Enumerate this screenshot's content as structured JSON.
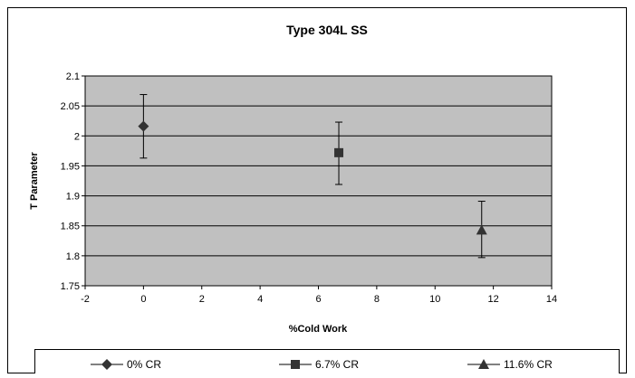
{
  "chart_data": {
    "type": "scatter",
    "title": "Type 304L SS",
    "xlabel": "%Cold Work",
    "ylabel": "T Parameter",
    "xlim": [
      -2,
      14
    ],
    "ylim": [
      1.75,
      2.1
    ],
    "x_ticks": [
      -2,
      0,
      2,
      4,
      6,
      8,
      10,
      12,
      14
    ],
    "y_ticks": [
      1.75,
      1.8,
      1.85,
      1.9,
      1.95,
      2,
      2.05,
      2.1
    ],
    "grid": "horizontal",
    "legend_position": "bottom",
    "plot_background": "#c0c0c0",
    "series": [
      {
        "name": "0% CR",
        "marker": "diamond",
        "x": 0,
        "y": 2.016,
        "error_low": 1.963,
        "error_high": 2.069
      },
      {
        "name": "6.7% CR",
        "marker": "square",
        "x": 6.7,
        "y": 1.972,
        "error_low": 1.919,
        "error_high": 2.023
      },
      {
        "name": "11.6% CR",
        "marker": "triangle",
        "x": 11.6,
        "y": 1.843,
        "error_low": 1.797,
        "error_high": 1.891
      }
    ]
  },
  "colors": {
    "marker": "#333333",
    "plot_area": "#c0c0c0",
    "gridline": "#000000",
    "frame": "#000000"
  }
}
